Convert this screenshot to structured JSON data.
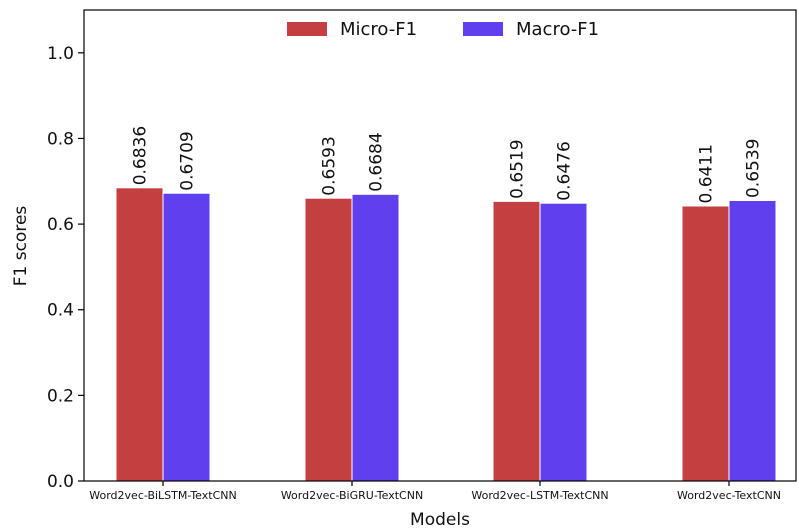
{
  "chart_data": {
    "type": "bar",
    "title": "",
    "xlabel": "Models",
    "ylabel": "F1 scores",
    "ylim": [
      0,
      1.1
    ],
    "yticks": [
      0.0,
      0.2,
      0.4,
      0.6,
      0.8,
      1.0
    ],
    "ytick_labels": [
      "0.0",
      "0.2",
      "0.4",
      "0.6",
      "0.8",
      "1.0"
    ],
    "categories": [
      "Word2vec-BiLSTM-TextCNN",
      "Word2vec-BiGRU-TextCNN",
      "Word2vec-LSTM-TextCNN",
      "Word2vec-TextCNN"
    ],
    "series": [
      {
        "name": "Micro-F1",
        "color": "#c44040",
        "values": [
          0.6836,
          0.6593,
          0.6519,
          0.6411
        ],
        "labels": [
          "0.6836",
          "0.6593",
          "0.6519",
          "0.6411"
        ]
      },
      {
        "name": "Macro-F1",
        "color": "#6040ee",
        "values": [
          0.6709,
          0.6684,
          0.6476,
          0.6539
        ],
        "labels": [
          "0.6709",
          "0.6684",
          "0.6476",
          "0.6539"
        ]
      }
    ],
    "legend_position": "top-center",
    "grid": false
  }
}
